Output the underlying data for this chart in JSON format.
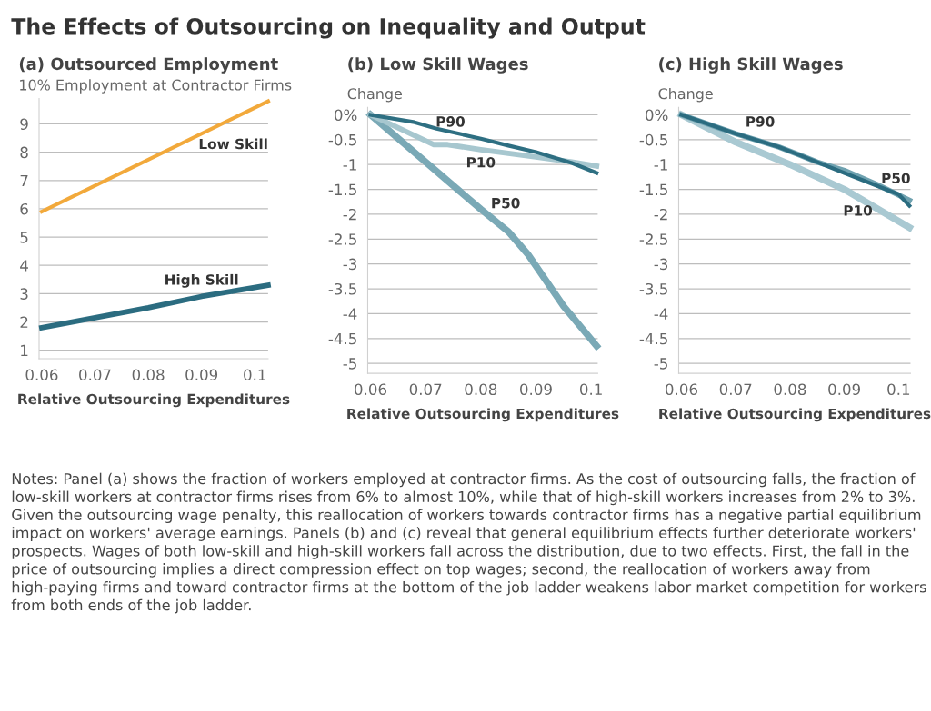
{
  "chart_data": [
    {
      "type": "other",
      "title": "The Effects of Outsourcing on Inequality and Output",
      "annotations": [
        "Notes: Panel (a) shows the fraction of workers employed at contractor firms. As the cost of outsourcing falls, the fraction of low-skill workers at contractor firms rises from 6% to almost 10%, while that of high-skill workers increases from 2% to 3%. Given the outsourcing wage penalty, this reallocation of workers towards contractor firms has a negative partial equilibrium impact on workers' average earnings. Panels (b) and (c) reveal that general equilibrium effects further deteriorate workers' prospects. Wages of both low-skill and high-skill workers fall across the distribution, due to two effects. First, the fall in the price of outsourcing implies a direct compression effect on top wages; second, the reallocation of workers away from high-paying firms and toward contractor firms at the bottom of the job ladder weakens labor market competition for workers from both ends of the job ladder."
      ]
    },
    {
      "type": "line",
      "title": "(a) Outsourced Employment",
      "xlabel": "Relative Outsourcing Expenditures",
      "ylabel": "10% Employment at Contractor Firms",
      "xlim": [
        0.0595,
        0.1025
      ],
      "xticks": [
        0.06,
        0.07,
        0.08,
        0.09,
        0.1
      ],
      "ylim": [
        0.7,
        9.9
      ],
      "yticks": [
        1,
        2,
        3,
        4,
        5,
        6,
        7,
        8,
        9
      ],
      "grid": "y",
      "legend": false,
      "series": [
        {
          "name": "Low Skill",
          "color": "#f2a93b",
          "x": [
            0.06,
            0.1025
          ],
          "values": [
            5.9,
            9.8
          ]
        },
        {
          "name": "High Skill",
          "color": "#2b6c80",
          "x": [
            0.06,
            0.07,
            0.08,
            0.09,
            0.1025
          ],
          "values": [
            1.8,
            2.15,
            2.5,
            2.9,
            3.3
          ]
        }
      ]
    },
    {
      "type": "line",
      "title": "(b) Low Skill Wages",
      "xlabel": "Relative Outsourcing Expenditures",
      "ylabel": "Change",
      "xlim": [
        0.0595,
        0.1012
      ],
      "xticks": [
        0.06,
        0.07,
        0.08,
        0.09,
        0.1
      ],
      "ylim": [
        -5.2,
        0.15
      ],
      "yticks": [
        {
          "value": 0,
          "label": "0%"
        },
        -0.5,
        -1,
        -1.5,
        -2,
        -2.5,
        -3,
        -3.5,
        -4,
        -4.5,
        -5
      ],
      "grid": "y",
      "legend": false,
      "series": [
        {
          "name": "P90",
          "color": "#2e6f82",
          "x": [
            0.06,
            0.068,
            0.072,
            0.08,
            0.085,
            0.09,
            0.0965,
            0.101
          ],
          "values": [
            0,
            -0.15,
            -0.28,
            -0.48,
            -0.62,
            -0.75,
            -0.97,
            -1.17
          ]
        },
        {
          "name": "P10",
          "color": "#a7c7cf",
          "x": [
            0.06,
            0.0715,
            0.074,
            0.08,
            0.09,
            0.0965,
            0.101
          ],
          "values": [
            0,
            -0.6,
            -0.6,
            -0.7,
            -0.85,
            -0.95,
            -1.03
          ]
        },
        {
          "name": "P50",
          "color": "#7aa9b6",
          "x": [
            0.06,
            0.07,
            0.08,
            0.085,
            0.0885,
            0.095,
            0.101
          ],
          "values": [
            0,
            -0.95,
            -1.9,
            -2.35,
            -2.8,
            -3.85,
            -4.65
          ]
        }
      ]
    },
    {
      "type": "line",
      "title": "(c) High Skill Wages",
      "xlabel": "Relative Outsourcing Expenditures",
      "ylabel": "Change",
      "xlim": [
        0.0595,
        0.1022
      ],
      "xticks": [
        0.06,
        0.07,
        0.08,
        0.09,
        0.1
      ],
      "ylim": [
        -5.2,
        0.15
      ],
      "yticks": [
        {
          "value": 0,
          "label": "0%"
        },
        -0.5,
        -1,
        -1.5,
        -2,
        -2.5,
        -3,
        -3.5,
        -4,
        -4.5,
        -5
      ],
      "grid": "y",
      "legend": false,
      "series": [
        {
          "name": "P90",
          "color": "#2b6c80",
          "x": [
            0.06,
            0.07,
            0.078,
            0.082,
            0.09,
            0.1,
            0.102
          ],
          "values": [
            0,
            -0.38,
            -0.65,
            -0.82,
            -1.17,
            -1.6,
            -1.83
          ]
        },
        {
          "name": "P50",
          "color": "#6fa2b0",
          "x": [
            0.06,
            0.07,
            0.078,
            0.082,
            0.085,
            0.09,
            0.096,
            0.102
          ],
          "values": [
            0,
            -0.38,
            -0.65,
            -0.82,
            -0.95,
            -1.12,
            -1.4,
            -1.72
          ]
        },
        {
          "name": "P10",
          "color": "#a9c9d2",
          "x": [
            0.06,
            0.07,
            0.08,
            0.09,
            0.102
          ],
          "values": [
            0,
            -0.55,
            -1.0,
            -1.5,
            -2.27
          ]
        }
      ]
    }
  ]
}
